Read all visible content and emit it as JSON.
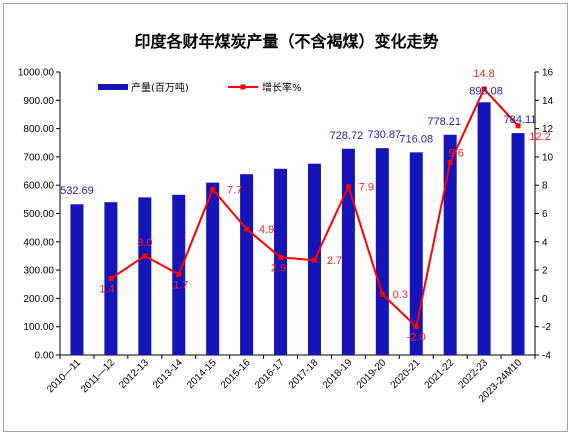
{
  "chart_data": {
    "type": "bar",
    "title": "印度各财年煤炭产量（不含褐煤）变化走势",
    "categories": [
      "2010—11",
      "2011—12",
      "2012-13",
      "2013-14",
      "2014-15",
      "2015-16",
      "2016-17",
      "2017-18",
      "2018-19",
      "2019-20",
      "2020-21",
      "2021-22",
      "2022-23",
      "2023-24M10"
    ],
    "series": [
      {
        "name": "产量(百万吨)",
        "type": "bar",
        "axis": "left",
        "color": "#1414b8",
        "values": [
          532.69,
          540,
          557,
          566,
          609,
          639,
          658,
          676,
          728.72,
          730.87,
          716.08,
          778.21,
          893.08,
          784.11
        ],
        "data_labels": [
          "532.69",
          "",
          "",
          "",
          "",
          "",
          "",
          "",
          "728.72",
          "730.87",
          "716.08",
          "778.21",
          "893.08",
          "784.11"
        ]
      },
      {
        "name": "增长率%",
        "type": "line",
        "axis": "right",
        "color": "#ff0000",
        "values": [
          null,
          1.4,
          3.0,
          1.7,
          7.7,
          4.9,
          2.9,
          2.7,
          7.9,
          0.3,
          -2.0,
          9.6,
          14.8,
          12.2
        ],
        "data_labels": [
          "",
          "1.4",
          "3.0",
          "1.7",
          "7.7",
          "4.9",
          "2.9",
          "2.7",
          "7.9",
          "0.3",
          "-2.0",
          "9.6",
          "14.8",
          "12.2"
        ]
      }
    ],
    "y_left": {
      "min": 0,
      "max": 1000,
      "step": 100,
      "ticks": [
        "0.00",
        "100.00",
        "200.00",
        "300.00",
        "400.00",
        "500.00",
        "600.00",
        "700.00",
        "800.00",
        "900.00",
        "1000.00"
      ]
    },
    "y_right": {
      "min": -4,
      "max": 16,
      "step": 2,
      "ticks": [
        "-4",
        "-2",
        "0",
        "2",
        "4",
        "6",
        "8",
        "10",
        "12",
        "14",
        "16"
      ]
    },
    "xlabel": "",
    "ylabel": "",
    "grid": false,
    "legend": "top-left"
  }
}
